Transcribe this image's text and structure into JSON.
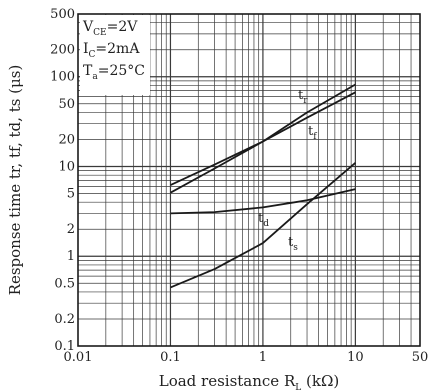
{
  "chart_data": {
    "type": "line",
    "scale": {
      "x": "log",
      "y": "log"
    },
    "xlim": [
      0.01,
      50
    ],
    "ylim": [
      0.1,
      500
    ],
    "grid": true,
    "x_ticks": [
      {
        "value": 0.01,
        "label": "0.01"
      },
      {
        "value": 0.1,
        "label": "0.1"
      },
      {
        "value": 1,
        "label": "1"
      },
      {
        "value": 10,
        "label": "10"
      },
      {
        "value": 50,
        "label": "50"
      }
    ],
    "y_ticks": [
      {
        "value": 0.1,
        "label": "0.1"
      },
      {
        "value": 0.2,
        "label": "0.2"
      },
      {
        "value": 0.5,
        "label": "0.5"
      },
      {
        "value": 1,
        "label": "1"
      },
      {
        "value": 2,
        "label": "2"
      },
      {
        "value": 5,
        "label": "5"
      },
      {
        "value": 10,
        "label": "10"
      },
      {
        "value": 20,
        "label": "20"
      },
      {
        "value": 50,
        "label": "50"
      },
      {
        "value": 100,
        "label": "100"
      },
      {
        "value": 200,
        "label": "200"
      },
      {
        "value": 500,
        "label": "500"
      }
    ],
    "xlabel": {
      "main": "Load resistance R",
      "sub": "L",
      "unit": " (kΩ)"
    },
    "ylabel": "Response time tr, tf, td, ts (μs)",
    "conditions": [
      {
        "main": "V",
        "sub": "CE",
        "rest": "=2V"
      },
      {
        "main": "I",
        "sub": "C",
        "rest": "=2mA"
      },
      {
        "main": "T",
        "sub": "a",
        "rest": "=25°C"
      }
    ],
    "series": [
      {
        "name": "tr",
        "label_main": "t",
        "label_sub": "r",
        "x": [
          0.1,
          0.3,
          1,
          3,
          10
        ],
        "y": [
          6.2,
          10.5,
          19,
          40,
          82
        ]
      },
      {
        "name": "tf",
        "label_main": "t",
        "label_sub": "f",
        "x": [
          0.1,
          0.3,
          1,
          3,
          10
        ],
        "y": [
          5.1,
          9.5,
          19,
          35,
          67
        ]
      },
      {
        "name": "td",
        "label_main": "t",
        "label_sub": "d",
        "x": [
          0.1,
          0.3,
          1,
          3,
          10
        ],
        "y": [
          3.0,
          3.1,
          3.5,
          4.2,
          5.6
        ]
      },
      {
        "name": "ts",
        "label_main": "t",
        "label_sub": "s",
        "x": [
          0.1,
          0.3,
          1,
          3,
          10
        ],
        "y": [
          0.45,
          0.72,
          1.4,
          3.8,
          11
        ]
      }
    ]
  },
  "colors": {
    "line": "#1a1a1a",
    "grid": "#3a3a3a",
    "background": "#ffffff"
  }
}
